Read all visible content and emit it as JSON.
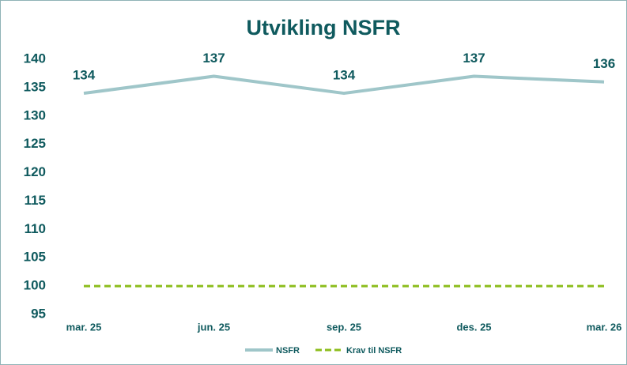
{
  "chart_data": {
    "type": "line",
    "title": "Utvikling NSFR",
    "categories": [
      "mar. 25",
      "jun. 25",
      "sep. 25",
      "des. 25",
      "mar. 26"
    ],
    "series": [
      {
        "name": "NSFR",
        "color": "#9fc6c9",
        "linestyle": "solid",
        "data_labels": true,
        "values": [
          134,
          137,
          134,
          137,
          136
        ]
      },
      {
        "name": "Krav til NSFR",
        "color": "#8cbd1c",
        "linestyle": "dashed",
        "data_labels": false,
        "values": [
          100,
          100,
          100,
          100,
          100
        ]
      }
    ],
    "ylim": [
      95,
      140
    ],
    "yticks": [
      95,
      100,
      105,
      110,
      115,
      120,
      125,
      130,
      135,
      140
    ],
    "grid": false,
    "legend": "bottom"
  }
}
